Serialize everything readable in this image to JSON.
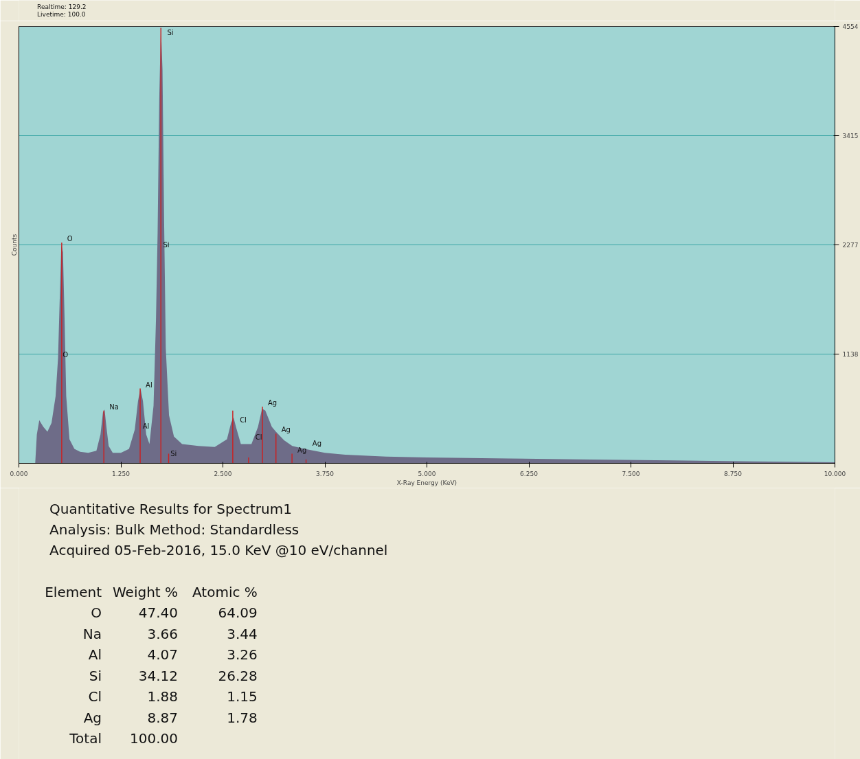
{
  "chart_data": {
    "type": "area",
    "xlabel": "X-Ray Energy (KeV)",
    "ylabel": "Counts",
    "xlim": [
      0,
      10
    ],
    "xticks": [
      {
        "value": 0,
        "label": "0.000"
      },
      {
        "value": 1.25,
        "label": "1.250"
      },
      {
        "value": 2.5,
        "label": "2.500"
      },
      {
        "value": 3.75,
        "label": "3.750"
      },
      {
        "value": 5,
        "label": "5.000"
      },
      {
        "value": 6.25,
        "label": "6.250"
      },
      {
        "value": 7.5,
        "label": "7.500"
      },
      {
        "value": 8.75,
        "label": "8.750"
      },
      {
        "value": 10,
        "label": "10.000"
      }
    ],
    "ylim": [
      0,
      4554
    ],
    "yticks": [
      1138,
      2277,
      3415,
      4554
    ],
    "grid": "y",
    "series": [
      {
        "color": "#6e6c88",
        "x": [
          0.2,
          0.22,
          0.25,
          0.27,
          0.3,
          0.35,
          0.4,
          0.45,
          0.48,
          0.5,
          0.52,
          0.54,
          0.56,
          0.58,
          0.62,
          0.68,
          0.75,
          0.85,
          0.95,
          1.0,
          1.03,
          1.05,
          1.07,
          1.1,
          1.15,
          1.25,
          1.35,
          1.42,
          1.46,
          1.49,
          1.52,
          1.56,
          1.6,
          1.65,
          1.68,
          1.7,
          1.72,
          1.74,
          1.76,
          1.78,
          1.8,
          1.84,
          1.9,
          2.0,
          2.2,
          2.4,
          2.55,
          2.6,
          2.63,
          2.66,
          2.72,
          2.85,
          2.93,
          2.98,
          3.02,
          3.1,
          3.15,
          3.25,
          3.35,
          3.5,
          3.75,
          4.0,
          4.5,
          5.0,
          6.0,
          7.0,
          8.0,
          9.0,
          10.0
        ],
        "values": [
          0,
          300,
          450,
          420,
          380,
          330,
          420,
          700,
          1100,
          1700,
          2277,
          2200,
          1500,
          700,
          250,
          150,
          120,
          110,
          130,
          300,
          530,
          560,
          400,
          180,
          110,
          110,
          150,
          350,
          650,
          780,
          650,
          300,
          200,
          600,
          1500,
          2400,
          3800,
          4554,
          4100,
          2500,
          1200,
          500,
          280,
          200,
          180,
          170,
          250,
          420,
          480,
          380,
          200,
          200,
          380,
          570,
          550,
          380,
          330,
          240,
          180,
          150,
          110,
          90,
          70,
          60,
          50,
          40,
          30,
          20,
          10
        ]
      },
      {
        "type": "bar",
        "color": "#cc2020",
        "x": [
          0.525,
          1.041,
          1.486,
          1.74,
          1.835,
          2.621,
          2.815,
          2.984,
          3.15,
          3.347,
          3.519
        ],
        "values": [
          2300,
          550,
          780,
          4540,
          100,
          550,
          60,
          590,
          310,
          100,
          40
        ]
      }
    ],
    "annotations": [
      "Realtime: 129.2",
      "Livetime: 100.0",
      "Quantitative Results for Spectrum1",
      "Analysis: Bulk    Method: Standardless",
      "Acquired 05-Feb-2016, 15.0 KeV @10 eV/channel",
      "Element",
      "Weight %",
      "Atomic %",
      "O",
      "47.40",
      "64.09",
      "Na",
      "3.66",
      "3.44",
      "Al",
      "4.07",
      "3.26",
      "Si",
      "34.12",
      "26.28",
      "Cl",
      "1.88",
      "1.15",
      "Ag",
      "8.87",
      "1.78",
      "Total",
      "100.00",
      {
        "text": "Si",
        "x": 1.75,
        "y": 4450
      },
      {
        "text": "Si",
        "x": 1.7,
        "y": 2240
      },
      {
        "text": "Si",
        "x": 1.79,
        "y": 60
      },
      {
        "text": "O",
        "x": 0.525,
        "y": 2300
      },
      {
        "text": "O",
        "x": 0.47,
        "y": 1090
      },
      {
        "text": "Na",
        "x": 1.041,
        "y": 550
      },
      {
        "text": "Al",
        "x": 1.486,
        "y": 780
      },
      {
        "text": "Al",
        "x": 1.45,
        "y": 345
      },
      {
        "text": "Cl",
        "x": 2.64,
        "y": 415
      },
      {
        "text": "Cl",
        "x": 2.83,
        "y": 230
      },
      {
        "text": "Ag",
        "x": 2.984,
        "y": 590
      },
      {
        "text": "Ag",
        "x": 3.15,
        "y": 310
      },
      {
        "text": "Ag",
        "x": 3.347,
        "y": 100
      },
      {
        "text": "Ag",
        "x": 3.53,
        "y": 170
      }
    ]
  }
}
